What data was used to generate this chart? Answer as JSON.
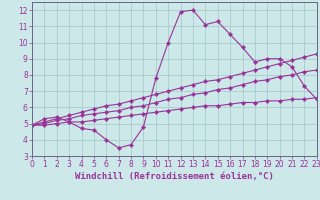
{
  "x": [
    0,
    1,
    2,
    3,
    4,
    5,
    6,
    7,
    8,
    9,
    10,
    11,
    12,
    13,
    14,
    15,
    16,
    17,
    18,
    19,
    20,
    21,
    22,
    23
  ],
  "line_wavy": [
    4.9,
    5.3,
    5.4,
    5.1,
    4.7,
    4.6,
    4.0,
    3.5,
    3.7,
    4.8,
    7.8,
    10.0,
    11.9,
    12.0,
    11.1,
    11.3,
    10.5,
    9.7,
    8.8,
    9.0,
    9.0,
    8.5,
    7.3,
    6.5
  ],
  "line_upper": [
    4.9,
    5.1,
    5.3,
    5.5,
    5.7,
    5.9,
    6.1,
    6.2,
    6.4,
    6.6,
    6.8,
    7.0,
    7.2,
    7.4,
    7.6,
    7.7,
    7.9,
    8.1,
    8.3,
    8.5,
    8.7,
    8.9,
    9.1,
    9.3
  ],
  "line_mid": [
    4.9,
    5.0,
    5.2,
    5.3,
    5.5,
    5.6,
    5.7,
    5.8,
    6.0,
    6.1,
    6.3,
    6.5,
    6.6,
    6.8,
    6.9,
    7.1,
    7.2,
    7.4,
    7.6,
    7.7,
    7.9,
    8.0,
    8.2,
    8.3
  ],
  "line_lower": [
    4.9,
    4.9,
    5.0,
    5.1,
    5.1,
    5.2,
    5.3,
    5.4,
    5.5,
    5.6,
    5.7,
    5.8,
    5.9,
    6.0,
    6.1,
    6.1,
    6.2,
    6.3,
    6.3,
    6.4,
    6.4,
    6.5,
    6.5,
    6.6
  ],
  "line_color": "#993399",
  "bg_color": "#cce8e8",
  "grid_color": "#aacccc",
  "xlabel": "Windchill (Refroidissement éolien,°C)",
  "ylim": [
    3,
    12.5
  ],
  "xlim": [
    0,
    23
  ],
  "yticks": [
    3,
    4,
    5,
    6,
    7,
    8,
    9,
    10,
    11,
    12
  ],
  "xticks": [
    0,
    1,
    2,
    3,
    4,
    5,
    6,
    7,
    8,
    9,
    10,
    11,
    12,
    13,
    14,
    15,
    16,
    17,
    18,
    19,
    20,
    21,
    22,
    23
  ],
  "marker": "D",
  "markersize": 2.2,
  "linewidth": 0.8,
  "xlabel_fontsize": 6.5,
  "tick_fontsize": 5.5,
  "tick_color": "#993399",
  "label_color": "#993399"
}
